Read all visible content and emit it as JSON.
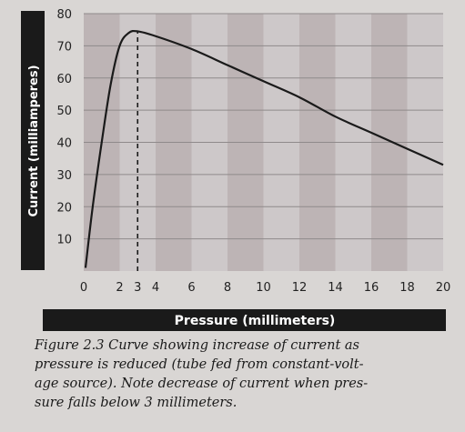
{
  "chart_data": {
    "type": "line",
    "xlabel": "Pressure (millimeters)",
    "ylabel": "Current (milliamperes)",
    "xlim": [
      0,
      20
    ],
    "ylim": [
      0,
      80
    ],
    "x_ticks": [
      0,
      2,
      3,
      4,
      6,
      8,
      10,
      12,
      14,
      16,
      18,
      20
    ],
    "y_ticks": [
      10,
      20,
      30,
      40,
      50,
      60,
      70,
      80
    ],
    "grid": "horizontal",
    "band_colors": [
      "#bdb4b5",
      "#cdc8c9"
    ],
    "line_color": "#1a1a1a",
    "axis_bar_color": "#1a1a1a",
    "series": [
      {
        "x": [
          0.1,
          0.5,
          1.0,
          1.5,
          2.0,
          2.5,
          3.0,
          4.0,
          6.0,
          8.0,
          10.0,
          12.0,
          14.0,
          16.0,
          18.0,
          20.0
        ],
        "y": [
          1,
          20,
          40,
          58,
          70,
          74,
          74.5,
          73,
          69,
          64,
          59,
          54,
          48,
          43,
          38,
          33
        ]
      }
    ],
    "annotations": [
      {
        "type": "vertical-dashed",
        "x": 3,
        "y_from": 0,
        "y_to": 74.5
      }
    ]
  },
  "caption": {
    "line1": "Figure 2.3  Curve showing increase of current as",
    "line2": "pressure is reduced (tube fed from constant-volt-",
    "line3": "age source). Note decrease of current when pres-",
    "line4": "sure falls below 3 millimeters."
  }
}
